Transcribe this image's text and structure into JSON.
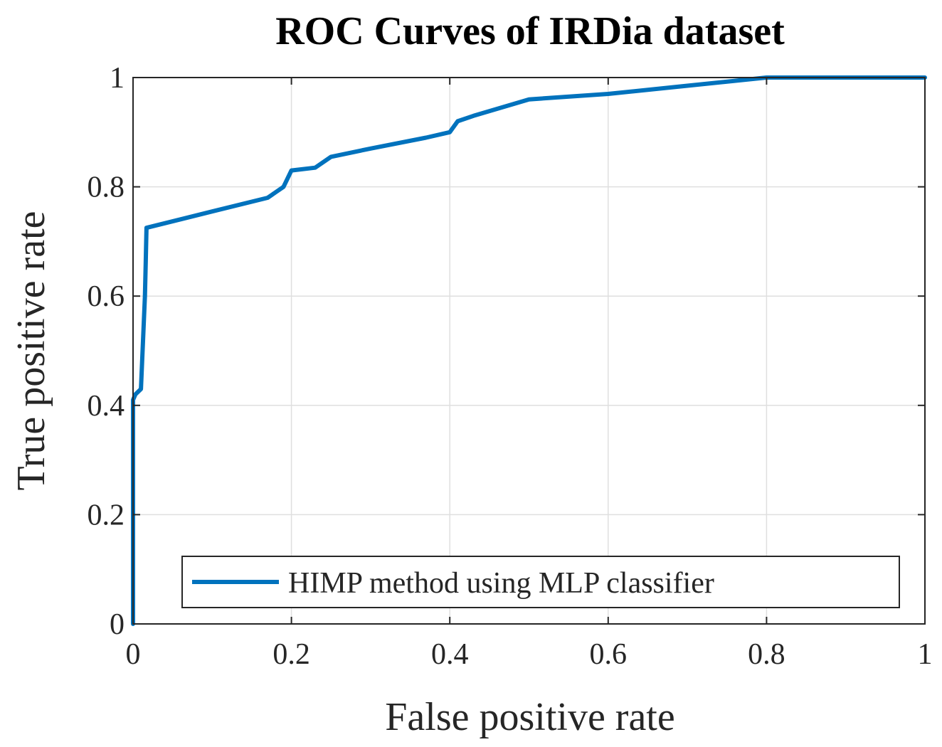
{
  "chart_data": {
    "type": "line",
    "title": "ROC Curves of IRDia dataset",
    "xlabel": "False positive rate",
    "ylabel": "True positive rate",
    "xlim": [
      0,
      1
    ],
    "ylim": [
      0,
      1
    ],
    "grid": true,
    "legend_position": "bottom-right",
    "xticks": [
      0,
      0.2,
      0.4,
      0.6,
      0.8,
      1
    ],
    "yticks": [
      0,
      0.2,
      0.4,
      0.6,
      0.8,
      1
    ],
    "xtick_labels": [
      "0",
      "0.2",
      "0.4",
      "0.6",
      "0.8",
      "1"
    ],
    "ytick_labels": [
      "0",
      "0.2",
      "0.4",
      "0.6",
      "0.8",
      "1"
    ],
    "series": [
      {
        "name": "HIMP method using MLP classifier",
        "color": "#0072BD",
        "x": [
          0,
          0,
          0.003,
          0.01,
          0.015,
          0.016,
          0.017,
          0.1,
          0.17,
          0.18,
          0.19,
          0.2,
          0.23,
          0.25,
          0.3,
          0.37,
          0.4,
          0.41,
          0.43,
          0.5,
          0.6,
          0.7,
          0.8,
          0.9,
          1.0
        ],
        "y": [
          0,
          0.41,
          0.42,
          0.43,
          0.6,
          0.66,
          0.725,
          0.755,
          0.78,
          0.79,
          0.8,
          0.83,
          0.835,
          0.855,
          0.87,
          0.89,
          0.9,
          0.92,
          0.93,
          0.96,
          0.97,
          0.985,
          1.0,
          1.0,
          1.0
        ]
      }
    ]
  }
}
